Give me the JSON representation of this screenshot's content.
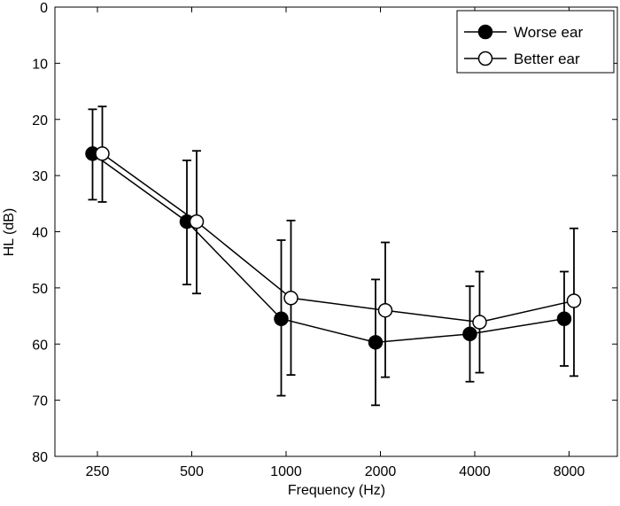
{
  "chart_data": {
    "type": "line",
    "title": "",
    "xlabel": "Frequency (Hz)",
    "ylabel": "HL (dB)",
    "categories": [
      "250",
      "500",
      "1000",
      "2000",
      "4000",
      "8000"
    ],
    "ylim": [
      0,
      80
    ],
    "y_reversed": true,
    "yticks": [
      0,
      10,
      20,
      30,
      40,
      50,
      60,
      70,
      80
    ],
    "grid": false,
    "legend_position": "top-right",
    "series": [
      {
        "name": "Worse ear",
        "marker": "filled-circle",
        "values": [
          26.1,
          38.2,
          55.5,
          59.7,
          58.2,
          55.5
        ],
        "err_low": [
          18.2,
          27.3,
          41.5,
          48.5,
          49.7,
          47.1
        ],
        "err_high": [
          34.3,
          49.4,
          69.2,
          70.9,
          66.7,
          63.9
        ]
      },
      {
        "name": "Better ear",
        "marker": "open-circle",
        "values": [
          26.1,
          38.2,
          51.8,
          54.0,
          56.1,
          52.3
        ],
        "err_low": [
          17.7,
          25.6,
          38.0,
          41.9,
          47.1,
          39.4
        ],
        "err_high": [
          34.7,
          51.0,
          65.5,
          65.9,
          65.1,
          65.7
        ]
      }
    ],
    "colors": {
      "line": "#000000",
      "worse_fill": "#000000",
      "better_fill": "#ffffff"
    }
  }
}
